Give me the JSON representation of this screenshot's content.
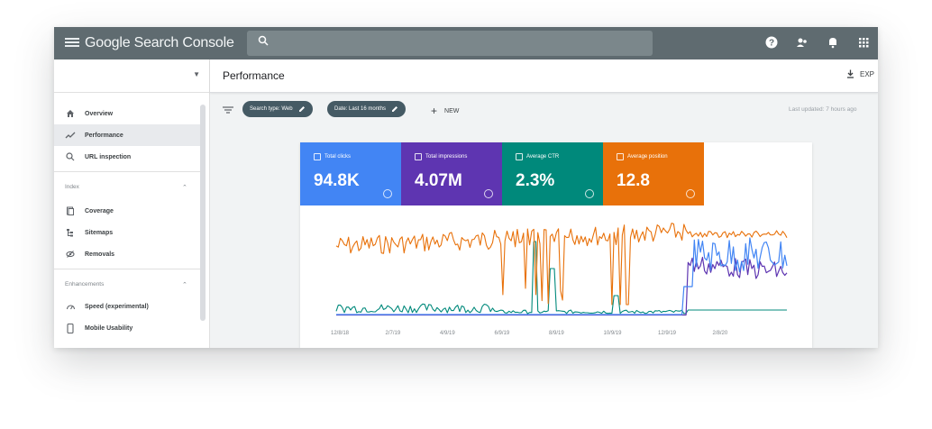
{
  "topbar": {
    "app_title": "Google Search Console",
    "icons": [
      "menu-icon",
      "search-icon",
      "help-icon",
      "users-icon",
      "bell-icon",
      "apps-icon"
    ]
  },
  "sidebar": {
    "items_top": [
      {
        "label": "Overview",
        "icon": "home-icon"
      },
      {
        "label": "Performance",
        "icon": "trend-icon"
      },
      {
        "label": "URL inspection",
        "icon": "search-icon"
      }
    ],
    "index_header": "Index",
    "index_items": [
      {
        "label": "Coverage",
        "icon": "coverage-icon"
      },
      {
        "label": "Sitemaps",
        "icon": "sitemaps-icon"
      },
      {
        "label": "Removals",
        "icon": "removals-icon"
      }
    ],
    "enh_header": "Enhancements",
    "enh_items": [
      {
        "label": "Speed (experimental)",
        "icon": "speed-icon"
      },
      {
        "label": "Mobile Usability",
        "icon": "mobile-icon"
      }
    ]
  },
  "header": {
    "title": "Performance",
    "export_label": "EXP"
  },
  "filters": {
    "chip1": "Search type: Web",
    "chip2": "Date: Last 16 months",
    "new_label": "NEW",
    "last_updated": "Last updated: 7 hours ago"
  },
  "metrics": [
    {
      "label": "Total clicks",
      "value": "94.8K",
      "color": "#4285f4"
    },
    {
      "label": "Total impressions",
      "value": "4.07M",
      "color": "#5e35b1"
    },
    {
      "label": "Average CTR",
      "value": "2.3%",
      "color": "#00897b"
    },
    {
      "label": "Average position",
      "value": "12.8",
      "color": "#e8710a"
    }
  ],
  "chart_data": {
    "type": "line",
    "x_labels": [
      "12/8/18",
      "2/7/19",
      "4/9/19",
      "6/9/19",
      "8/9/19",
      "10/9/19",
      "12/9/19",
      "2/8/20"
    ],
    "series": [
      {
        "color": "#e8710a"
      },
      {
        "color": "#4285f4"
      },
      {
        "color": "#5e35b1"
      },
      {
        "color": "#00897b"
      }
    ],
    "colors": {
      "clicks": "#4285f4",
      "impressions": "#5e35b1",
      "ctr": "#00897b",
      "position": "#e8710a"
    }
  }
}
